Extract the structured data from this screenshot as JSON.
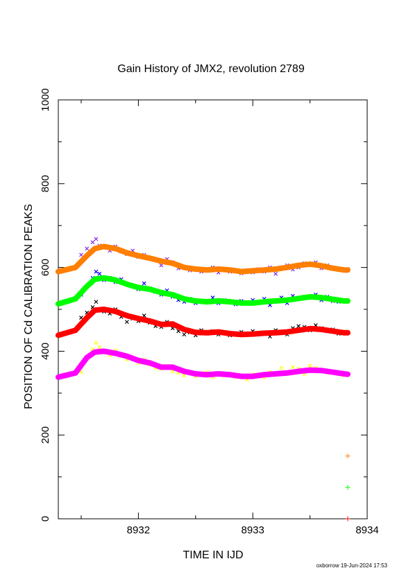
{
  "chart_data": {
    "type": "scatter",
    "title": "Gain History of JMX2, revolution 2789",
    "xlabel": "TIME IN IJD",
    "ylabel": "POSITION OF Cd CALIBRATION PEAKS",
    "xlim": [
      8931.3,
      8934.0
    ],
    "ylim": [
      0,
      1000
    ],
    "xticks": [
      "8932",
      "8933",
      "8934"
    ],
    "yticks": [
      "0",
      "200",
      "400",
      "600",
      "800",
      "1000"
    ],
    "grid": false,
    "series": [
      {
        "color": "#8a2be2",
        "marker": "x",
        "x": [
          8931.5,
          8931.55,
          8931.6,
          8931.63,
          8931.66,
          8931.7,
          8931.75,
          8931.8,
          8931.85,
          8931.9,
          8931.95,
          8932.0,
          8932.05,
          8932.1,
          8932.15,
          8932.2,
          8932.25,
          8932.3,
          8932.35,
          8932.4,
          8932.45,
          8932.5,
          8932.55,
          8932.6,
          8932.65,
          8932.7,
          8932.75,
          8932.8,
          8932.85,
          8932.9,
          8932.95,
          8933.0,
          8933.05,
          8933.1,
          8933.15,
          8933.2,
          8933.25,
          8933.3,
          8933.35,
          8933.4,
          8933.45,
          8933.5,
          8933.55,
          8933.6,
          8933.65,
          8933.7,
          8933.75,
          8933.8,
          8933.83
        ],
        "y": [
          630,
          645,
          660,
          668,
          652,
          648,
          640,
          650,
          638,
          632,
          640,
          625,
          630,
          622,
          618,
          605,
          620,
          612,
          598,
          600,
          593,
          598,
          590,
          592,
          600,
          588,
          595,
          590,
          593,
          586,
          590,
          588,
          596,
          590,
          600,
          585,
          597,
          605,
          595,
          600,
          610,
          608,
          612,
          598,
          605,
          600,
          594,
          592,
          596
        ]
      },
      {
        "color": "#ff7f00",
        "marker": "line",
        "x": [
          8931.3,
          8931.45,
          8931.55,
          8931.62,
          8931.7,
          8931.8,
          8931.9,
          8932.0,
          8932.1,
          8932.2,
          8932.3,
          8932.4,
          8932.5,
          8932.6,
          8932.7,
          8932.8,
          8932.9,
          8933.0,
          8933.1,
          8933.2,
          8933.3,
          8933.4,
          8933.5,
          8933.6,
          8933.7,
          8933.8,
          8933.83
        ],
        "y": [
          590,
          600,
          628,
          645,
          650,
          645,
          635,
          628,
          622,
          615,
          610,
          600,
          596,
          594,
          596,
          594,
          590,
          592,
          594,
          596,
          600,
          605,
          608,
          604,
          598,
          594,
          594
        ]
      },
      {
        "color": "#0000ff",
        "marker": "x",
        "x": [
          8931.5,
          8931.55,
          8931.6,
          8931.63,
          8931.66,
          8931.7,
          8931.75,
          8931.8,
          8931.85,
          8931.9,
          8931.95,
          8932.0,
          8932.05,
          8932.1,
          8932.15,
          8932.2,
          8932.25,
          8932.3,
          8932.35,
          8932.4,
          8932.45,
          8932.5,
          8932.55,
          8932.6,
          8932.65,
          8932.7,
          8932.75,
          8932.8,
          8932.85,
          8932.9,
          8932.95,
          8933.0,
          8933.05,
          8933.1,
          8933.15,
          8933.2,
          8933.25,
          8933.3,
          8933.35,
          8933.4,
          8933.45,
          8933.5,
          8933.55,
          8933.6,
          8933.65,
          8933.7,
          8933.75,
          8933.8,
          8933.83
        ],
        "y": [
          535,
          555,
          575,
          590,
          585,
          570,
          575,
          565,
          572,
          560,
          555,
          548,
          562,
          550,
          542,
          535,
          545,
          530,
          522,
          518,
          525,
          515,
          520,
          518,
          528,
          515,
          522,
          518,
          512,
          520,
          515,
          522,
          518,
          525,
          510,
          520,
          528,
          515,
          532,
          525,
          530,
          528,
          535,
          522,
          530,
          520,
          518,
          522,
          520
        ]
      },
      {
        "color": "#00ff00",
        "marker": "line",
        "x": [
          8931.3,
          8931.45,
          8931.55,
          8931.62,
          8931.7,
          8931.8,
          8931.9,
          8932.0,
          8932.1,
          8932.2,
          8932.3,
          8932.4,
          8932.5,
          8932.6,
          8932.7,
          8932.8,
          8932.9,
          8933.0,
          8933.1,
          8933.2,
          8933.3,
          8933.4,
          8933.5,
          8933.6,
          8933.7,
          8933.8,
          8933.83
        ],
        "y": [
          513,
          525,
          555,
          572,
          575,
          570,
          560,
          552,
          548,
          540,
          535,
          525,
          520,
          518,
          520,
          518,
          515,
          515,
          518,
          520,
          522,
          526,
          530,
          528,
          524,
          520,
          520
        ]
      },
      {
        "color": "#000000",
        "marker": "x",
        "x": [
          8931.5,
          8931.55,
          8931.6,
          8931.63,
          8931.66,
          8931.7,
          8931.75,
          8931.8,
          8931.85,
          8931.9,
          8931.95,
          8932.0,
          8932.05,
          8932.1,
          8932.15,
          8932.2,
          8932.25,
          8932.3,
          8932.35,
          8932.4,
          8932.45,
          8932.5,
          8932.55,
          8932.6,
          8932.65,
          8932.7,
          8932.75,
          8932.8,
          8932.85,
          8932.9,
          8932.95,
          8933.0,
          8933.05,
          8933.1,
          8933.15,
          8933.2,
          8933.25,
          8933.3,
          8933.35,
          8933.4,
          8933.45,
          8933.5,
          8933.55,
          8933.6,
          8933.65,
          8933.7,
          8933.75,
          8933.8,
          8933.83
        ],
        "y": [
          480,
          492,
          505,
          518,
          500,
          495,
          490,
          500,
          482,
          470,
          478,
          472,
          485,
          468,
          460,
          458,
          470,
          455,
          448,
          440,
          445,
          438,
          450,
          442,
          448,
          440,
          445,
          438,
          442,
          446,
          440,
          448,
          440,
          444,
          435,
          450,
          445,
          440,
          455,
          460,
          458,
          450,
          462,
          455,
          448,
          452,
          442,
          446,
          444
        ]
      },
      {
        "color": "#ff0000",
        "marker": "line",
        "x": [
          8931.3,
          8931.45,
          8931.55,
          8931.62,
          8931.7,
          8931.8,
          8931.9,
          8932.0,
          8932.1,
          8932.2,
          8932.3,
          8932.4,
          8932.5,
          8932.6,
          8932.7,
          8932.8,
          8932.9,
          8933.0,
          8933.1,
          8933.2,
          8933.3,
          8933.4,
          8933.5,
          8933.6,
          8933.7,
          8933.8,
          8933.83
        ],
        "y": [
          438,
          450,
          480,
          498,
          500,
          495,
          485,
          478,
          472,
          464,
          465,
          452,
          445,
          444,
          446,
          442,
          440,
          441,
          443,
          444,
          446,
          450,
          454,
          452,
          448,
          444,
          444
        ]
      },
      {
        "color": "#ffff00",
        "marker": "x",
        "x": [
          8931.5,
          8931.55,
          8931.6,
          8931.63,
          8931.66,
          8931.7,
          8931.75,
          8931.8,
          8931.85,
          8931.9,
          8931.95,
          8932.0,
          8932.05,
          8932.1,
          8932.15,
          8932.2,
          8932.25,
          8932.3,
          8932.35,
          8932.4,
          8932.45,
          8932.5,
          8932.55,
          8932.6,
          8932.65,
          8932.7,
          8932.75,
          8932.8,
          8932.85,
          8932.9,
          8932.95,
          8933.0,
          8933.05,
          8933.1,
          8933.15,
          8933.2,
          8933.25,
          8933.3,
          8933.35,
          8933.4,
          8933.45,
          8933.5,
          8933.55,
          8933.6,
          8933.65,
          8933.7,
          8933.75,
          8933.8,
          8933.83
        ],
        "y": [
          350,
          385,
          405,
          420,
          410,
          398,
          390,
          402,
          388,
          380,
          385,
          372,
          380,
          368,
          360,
          358,
          365,
          352,
          348,
          342,
          350,
          340,
          345,
          350,
          338,
          348,
          342,
          345,
          338,
          340,
          332,
          345,
          340,
          338,
          350,
          345,
          360,
          350,
          362,
          358,
          345,
          365,
          360,
          355,
          350,
          348,
          345,
          342,
          344
        ]
      },
      {
        "color": "#ff00ff",
        "marker": "line",
        "x": [
          8931.3,
          8931.45,
          8931.55,
          8931.62,
          8931.7,
          8931.8,
          8931.9,
          8932.0,
          8932.1,
          8932.2,
          8932.3,
          8932.4,
          8932.5,
          8932.6,
          8932.7,
          8932.8,
          8932.9,
          8933.0,
          8933.1,
          8933.2,
          8933.3,
          8933.4,
          8933.5,
          8933.6,
          8933.7,
          8933.8,
          8933.83
        ],
        "y": [
          338,
          348,
          385,
          398,
          400,
          395,
          388,
          378,
          372,
          362,
          362,
          352,
          346,
          344,
          346,
          344,
          340,
          340,
          344,
          346,
          348,
          352,
          355,
          354,
          350,
          346,
          345
        ]
      }
    ],
    "extra_markers": [
      {
        "color": "#ff7f00",
        "marker": "+",
        "x": 8933.83,
        "y": 150
      },
      {
        "color": "#00ff00",
        "marker": "+",
        "x": 8933.83,
        "y": 75
      },
      {
        "color": "#ff0000",
        "marker": "+",
        "x": 8933.83,
        "y": 0
      }
    ]
  },
  "footer": {
    "text": "oxborrow 19-Jun-2024 17:53"
  }
}
